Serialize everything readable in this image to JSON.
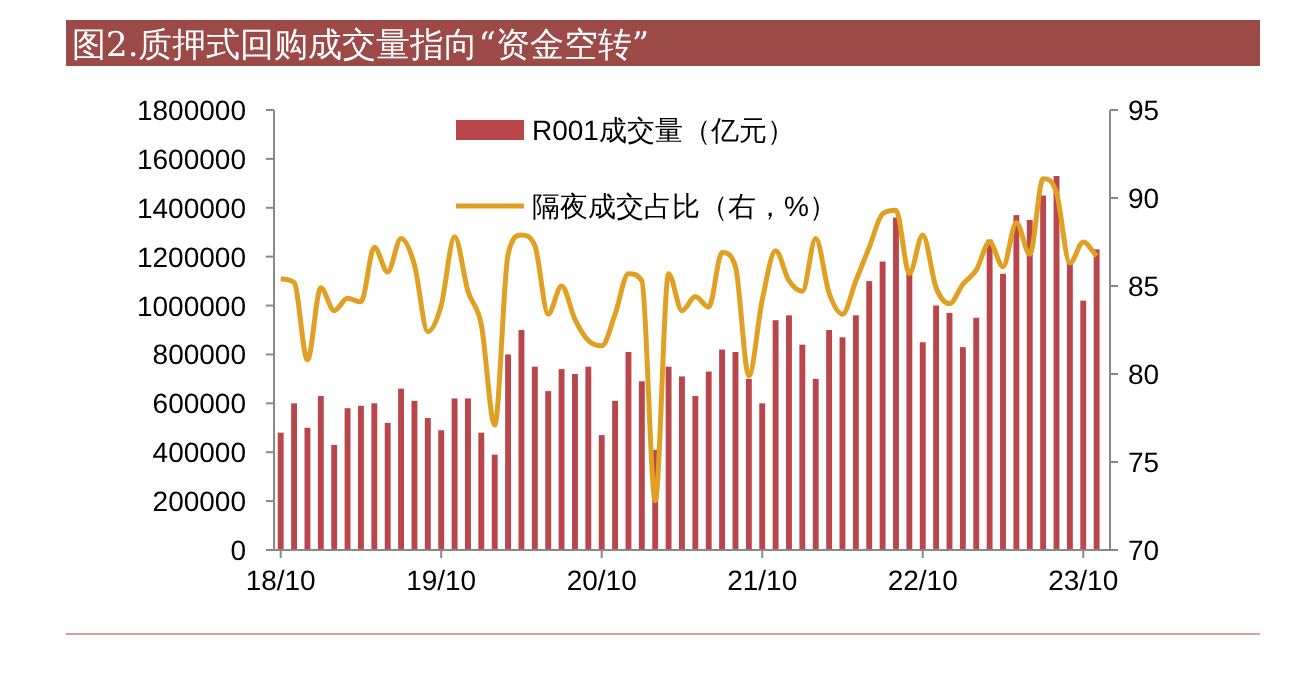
{
  "chart_data": {
    "type": "bar",
    "title": "图2.质押式回购成交量指向“资金空转”",
    "categories": [
      "18/10",
      null,
      null,
      null,
      null,
      null,
      null,
      null,
      null,
      null,
      null,
      null,
      "19/10",
      null,
      null,
      null,
      null,
      null,
      null,
      null,
      null,
      null,
      null,
      null,
      "20/10",
      null,
      null,
      null,
      null,
      null,
      null,
      null,
      null,
      null,
      null,
      null,
      "21/10",
      null,
      null,
      null,
      null,
      null,
      null,
      null,
      null,
      null,
      null,
      null,
      "22/10",
      null,
      null,
      null,
      null,
      null,
      null,
      null,
      null,
      null,
      null,
      null,
      "23/10",
      null
    ],
    "series": [
      {
        "name": "R001成交量（亿元）",
        "color": "#b8464a",
        "values": [
          480000,
          600000,
          500000,
          630000,
          430000,
          580000,
          590000,
          600000,
          520000,
          660000,
          610000,
          540000,
          490000,
          620000,
          620000,
          480000,
          390000,
          800000,
          900000,
          750000,
          650000,
          740000,
          720000,
          750000,
          470000,
          610000,
          810000,
          690000,
          410000,
          750000,
          710000,
          630000,
          730000,
          820000,
          810000,
          700000,
          600000,
          940000,
          960000,
          840000,
          700000,
          900000,
          870000,
          960000,
          1100000,
          1180000,
          1360000,
          1130000,
          850000,
          1000000,
          970000,
          830000,
          950000,
          1270000,
          1130000,
          1370000,
          1350000,
          1450000,
          1530000,
          1180000,
          1020000,
          1230000
        ]
      },
      {
        "name": "隔夜成交占比（右，%）",
        "type": "line",
        "axis": "y2",
        "color": "#e0a024",
        "values": [
          85.4,
          85.2,
          80.8,
          84.9,
          83.6,
          84.3,
          84.1,
          87.2,
          85.8,
          87.7,
          86.2,
          82.4,
          83.9,
          87.8,
          84.7,
          82.8,
          77.1,
          86.8,
          87.9,
          87.3,
          83.4,
          85.0,
          83.1,
          81.9,
          81.6,
          83.4,
          85.7,
          85.3,
          72.8,
          85.7,
          83.6,
          84.4,
          83.8,
          86.9,
          86.1,
          79.9,
          84.2,
          87.0,
          85.3,
          84.7,
          87.7,
          84.6,
          83.4,
          85.3,
          87.2,
          89.1,
          89.3,
          85.7,
          87.9,
          84.9,
          84.0,
          85.1,
          85.9,
          87.5,
          86.1,
          88.6,
          86.8,
          91.1,
          90.3,
          86.3,
          87.5,
          86.7
        ]
      }
    ],
    "ylim": [
      0,
      1800000
    ],
    "yticks": [
      0,
      200000,
      400000,
      600000,
      800000,
      1000000,
      1200000,
      1400000,
      1600000,
      1800000
    ],
    "y2lim": [
      70,
      95
    ],
    "y2ticks": [
      70,
      75,
      80,
      85,
      90,
      95
    ],
    "legend": "top",
    "grid": false
  }
}
